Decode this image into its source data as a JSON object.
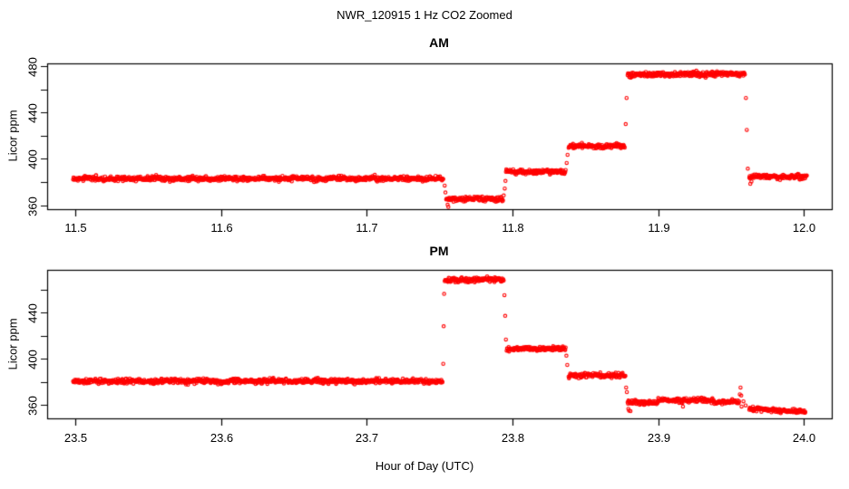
{
  "page": {
    "title": "NWR_120915  1 Hz CO2 Zoomed",
    "xlabel": "Hour of Day (UTC)",
    "background_color": "#ffffff",
    "axis_color": "#000000",
    "text_color": "#000000"
  },
  "chart_data": [
    {
      "type": "scatter",
      "panel": "AM",
      "title": "AM",
      "ylabel": "Licor ppm",
      "marker": "open-circle",
      "series_color": "#ff0000",
      "sample_rate_hz": 1,
      "xlim": [
        11.48,
        12.02
      ],
      "ylim": [
        356.5,
        483
      ],
      "xticks": [
        11.5,
        11.6,
        11.7,
        11.8,
        11.9,
        12.0
      ],
      "ytick_values": [
        360,
        380,
        400,
        420,
        440,
        460,
        480
      ],
      "ytick_labeled": [
        360,
        400,
        440,
        480
      ],
      "segments": [
        {
          "t_start": 11.4985,
          "t_end": 11.7525,
          "ppm_start": 383.0,
          "ppm_end": 383.0,
          "noise_sd": 1.0
        },
        {
          "t_start": 11.7545,
          "t_end": 11.7935,
          "ppm_start": 365.5,
          "ppm_end": 365.5,
          "noise_sd": 1.0
        },
        {
          "t_start": 11.7955,
          "t_end": 11.8365,
          "ppm_start": 389.0,
          "ppm_end": 389.0,
          "noise_sd": 0.95
        },
        {
          "t_start": 11.8385,
          "t_end": 11.877,
          "ppm_start": 411.0,
          "ppm_end": 411.0,
          "noise_sd": 0.95
        },
        {
          "t_start": 11.879,
          "t_end": 11.9595,
          "ppm_start": 472.5,
          "ppm_end": 473.5,
          "noise_sd": 1.05
        },
        {
          "t_start": 11.9625,
          "t_end": 12.002,
          "ppm_start": 384.5,
          "ppm_end": 384.5,
          "noise_sd": 0.95
        }
      ],
      "transition_points": [
        [
          11.7535,
          377.0
        ],
        [
          11.754,
          371.0
        ],
        [
          11.7555,
          360.5
        ],
        [
          11.756,
          358.5
        ],
        [
          11.794,
          368.5
        ],
        [
          11.7947,
          374.5
        ],
        [
          11.7952,
          381.0
        ],
        [
          11.8372,
          396.5
        ],
        [
          11.8378,
          403.5
        ],
        [
          11.8777,
          430.0
        ],
        [
          11.8783,
          452.5
        ],
        [
          11.9602,
          452.5
        ],
        [
          11.9608,
          425.0
        ],
        [
          11.9615,
          391.5
        ],
        [
          11.9632,
          378.5
        ],
        [
          11.964,
          380.5
        ]
      ]
    },
    {
      "type": "scatter",
      "panel": "PM",
      "title": "PM",
      "ylabel": "Licor ppm",
      "marker": "open-circle",
      "series_color": "#ff0000",
      "sample_rate_hz": 1,
      "xlim": [
        23.48,
        24.02
      ],
      "ylim": [
        348,
        478
      ],
      "xticks": [
        23.5,
        23.6,
        23.7,
        23.8,
        23.9,
        24.0
      ],
      "ytick_values": [
        360,
        380,
        400,
        420,
        440,
        460
      ],
      "ytick_labeled": [
        360,
        400,
        440
      ],
      "segments": [
        {
          "t_start": 23.4985,
          "t_end": 23.752,
          "ppm_start": 380.5,
          "ppm_end": 380.5,
          "noise_sd": 1.0
        },
        {
          "t_start": 23.7535,
          "t_end": 23.794,
          "ppm_start": 468.0,
          "ppm_end": 468.5,
          "noise_sd": 1.05
        },
        {
          "t_start": 23.796,
          "t_end": 23.8365,
          "ppm_start": 408.5,
          "ppm_end": 408.5,
          "noise_sd": 0.95
        },
        {
          "t_start": 23.8385,
          "t_end": 23.8775,
          "ppm_start": 385.5,
          "ppm_end": 385.5,
          "noise_sd": 0.95
        },
        {
          "t_start": 23.879,
          "t_end": 23.9,
          "ppm_start": 362.0,
          "ppm_end": 362.0,
          "noise_sd": 0.95
        },
        {
          "t_start": 23.9,
          "t_end": 23.938,
          "ppm_start": 364.0,
          "ppm_end": 364.0,
          "noise_sd": 0.95
        },
        {
          "t_start": 23.938,
          "t_end": 23.9555,
          "ppm_start": 362.5,
          "ppm_end": 362.5,
          "noise_sd": 0.9
        },
        {
          "t_start": 23.9625,
          "t_end": 24.001,
          "ppm_start": 356.5,
          "ppm_end": 354.0,
          "noise_sd": 0.85
        }
      ],
      "transition_points": [
        [
          23.7525,
          395.5
        ],
        [
          23.7528,
          428.0
        ],
        [
          23.7531,
          456.0
        ],
        [
          23.7945,
          455.0
        ],
        [
          23.795,
          437.0
        ],
        [
          23.7955,
          416.5
        ],
        [
          23.837,
          402.5
        ],
        [
          23.8376,
          394.5
        ],
        [
          23.878,
          375.0
        ],
        [
          23.8785,
          371.0
        ],
        [
          23.8795,
          356.5
        ],
        [
          23.88,
          355.0
        ],
        [
          23.881,
          354.5
        ],
        [
          23.917,
          358.5
        ],
        [
          23.956,
          369.0
        ],
        [
          23.9565,
          375.0
        ],
        [
          23.957,
          368.0
        ],
        [
          23.9572,
          358.5
        ],
        [
          23.9585,
          363.0
        ],
        [
          23.96,
          359.5
        ]
      ]
    }
  ]
}
